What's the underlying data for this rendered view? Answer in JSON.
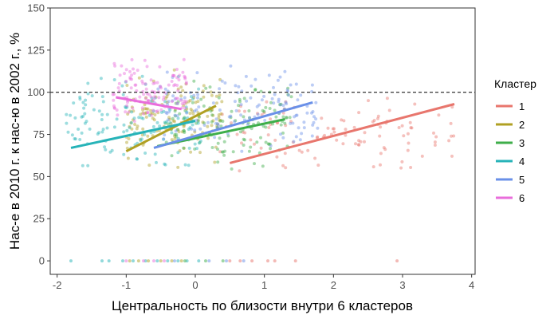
{
  "chart_data": {
    "type": "scatter",
    "xlabel": "Центральность по близости внутри 6 кластеров",
    "ylabel": "Нас-е в 2010 г. к нас-ю в 2002 г., %",
    "xlim": [
      -2.1,
      4.05
    ],
    "ylim": [
      -8,
      150
    ],
    "x_ticks": [
      "-2",
      "-1",
      "0",
      "1",
      "2",
      "3",
      "4"
    ],
    "y_ticks": [
      "0",
      "25",
      "50",
      "75",
      "100",
      "125",
      "150"
    ],
    "x_tick_values": [
      -2,
      -1,
      0,
      1,
      2,
      3,
      4
    ],
    "y_tick_values": [
      0,
      25,
      50,
      75,
      100,
      125,
      150
    ],
    "reference_line": {
      "y": 100,
      "style": "dashed"
    },
    "grid": false,
    "legend": {
      "title": "Кластер",
      "placement": "right",
      "entries": [
        "1",
        "2",
        "3",
        "4",
        "5",
        "6"
      ]
    },
    "series": [
      {
        "name": "1",
        "color": "#e8766d",
        "trend": [
          [
            0.5,
            58
          ],
          [
            3.75,
            93
          ]
        ],
        "x_range": [
          0.3,
          3.8
        ],
        "y_center": 75,
        "y_spread": 18,
        "count": 110
      },
      {
        "name": "2",
        "color": "#b0a023",
        "trend": [
          [
            -1.0,
            65
          ],
          [
            0.3,
            92
          ]
        ],
        "x_range": [
          -1.0,
          0.4
        ],
        "y_center": 85,
        "y_spread": 22,
        "count": 140
      },
      {
        "name": "3",
        "color": "#3eae4a",
        "trend": [
          [
            -0.55,
            68
          ],
          [
            1.3,
            84
          ]
        ],
        "x_range": [
          -0.5,
          1.4
        ],
        "y_center": 82,
        "y_spread": 20,
        "count": 130
      },
      {
        "name": "4",
        "color": "#26b3b8",
        "trend": [
          [
            -1.8,
            67
          ],
          [
            0.0,
            83
          ]
        ],
        "x_range": [
          -1.9,
          0.1
        ],
        "y_center": 82,
        "y_spread": 22,
        "count": 130
      },
      {
        "name": "5",
        "color": "#6a90e8",
        "trend": [
          [
            -0.6,
            67
          ],
          [
            1.7,
            94
          ]
        ],
        "x_range": [
          -0.6,
          1.8
        ],
        "y_center": 88,
        "y_spread": 20,
        "count": 140
      },
      {
        "name": "6",
        "color": "#e96ddb",
        "trend": [
          [
            -1.15,
            97
          ],
          [
            -0.2,
            90
          ]
        ],
        "x_range": [
          -1.2,
          -0.1
        ],
        "y_center": 100,
        "y_spread": 18,
        "count": 120
      }
    ],
    "zero_points": [
      {
        "series": "1",
        "x": [
          0.5,
          0.65,
          0.82,
          1.05,
          1.15,
          1.45,
          2.92
        ]
      },
      {
        "series": "4",
        "x": [
          -1.8,
          -1.35,
          -1.25,
          -1.05,
          -0.9,
          -0.72,
          -0.55,
          -0.4,
          -0.25,
          -0.12,
          0.05
        ]
      },
      {
        "series": "2",
        "x": [
          -0.95,
          -0.82,
          -0.68,
          -0.5,
          -0.34,
          -0.2
        ]
      },
      {
        "series": "6",
        "x": [
          -1.0,
          -0.75,
          -0.6,
          -0.45
        ]
      },
      {
        "series": "5",
        "x": [
          -0.3,
          0.2,
          0.45,
          0.7
        ]
      },
      {
        "series": "3",
        "x": [
          -0.15,
          0.15,
          0.4
        ]
      }
    ]
  }
}
